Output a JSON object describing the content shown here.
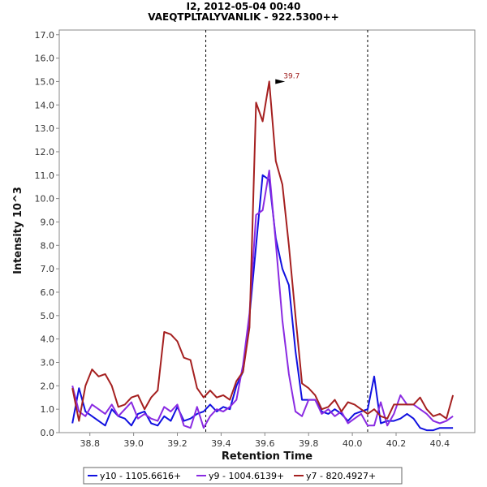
{
  "chart_data": {
    "type": "line",
    "title": "I2, 2012-05-04 00:40",
    "subtitle": "VAEQTPLTALYVANLIK - 922.5300++",
    "xlabel": "Retention Time",
    "ylabel": "Intensity 10^3",
    "xlim": [
      38.66,
      40.56
    ],
    "ylim": [
      0,
      17.2
    ],
    "xticks": [
      38.8,
      39.0,
      39.2,
      39.4,
      39.6,
      39.8,
      40.0,
      40.2,
      40.4
    ],
    "xtick_labels": [
      "38.8",
      "39.0",
      "39.2",
      "39.4",
      "39.6",
      "39.8",
      "40.0",
      "40.2",
      "40.4"
    ],
    "yticks": [
      0,
      1,
      2,
      3,
      4,
      5,
      6,
      7,
      8,
      9,
      10,
      11,
      12,
      13,
      14,
      15,
      16,
      17
    ],
    "ytick_labels": [
      "0.0",
      "1.0",
      "2.0",
      "3.0",
      "4.0",
      "5.0",
      "6.0",
      "7.0",
      "8.0",
      "9.0",
      "10.0",
      "11.0",
      "12.0",
      "13.0",
      "14.0",
      "15.0",
      "16.0",
      "17.0"
    ],
    "boundaries": [
      39.33,
      40.07
    ],
    "annotation": {
      "x": 39.7,
      "y": 15.0,
      "label": "39.7",
      "color": "#a02020"
    },
    "x": [
      38.72,
      38.75,
      38.78,
      38.81,
      38.84,
      38.87,
      38.9,
      38.93,
      38.96,
      38.99,
      39.02,
      39.05,
      39.08,
      39.11,
      39.14,
      39.17,
      39.2,
      39.23,
      39.26,
      39.29,
      39.32,
      39.35,
      39.38,
      39.41,
      39.44,
      39.47,
      39.5,
      39.53,
      39.56,
      39.59,
      39.62,
      39.65,
      39.68,
      39.71,
      39.74,
      39.77,
      39.8,
      39.83,
      39.86,
      39.89,
      39.92,
      39.95,
      39.98,
      40.01,
      40.04,
      40.07,
      40.1,
      40.13,
      40.16,
      40.19,
      40.22,
      40.25,
      40.28,
      40.31,
      40.34,
      40.37,
      40.4,
      40.43,
      40.46
    ],
    "series": [
      {
        "name": "y10 - 1105.6616+",
        "color": "#1010e0",
        "values": [
          0.4,
          1.9,
          0.9,
          0.7,
          0.5,
          0.3,
          1.0,
          0.7,
          0.6,
          0.3,
          0.8,
          0.9,
          0.4,
          0.3,
          0.7,
          0.5,
          1.1,
          0.5,
          0.6,
          0.8,
          0.9,
          1.2,
          0.9,
          1.1,
          1.0,
          2.0,
          2.6,
          5.0,
          8.0,
          11.0,
          10.8,
          8.3,
          7.0,
          6.3,
          3.5,
          1.4,
          1.4,
          1.4,
          0.9,
          0.8,
          1.0,
          0.8,
          0.5,
          0.8,
          0.9,
          1.0,
          2.4,
          0.4,
          0.5,
          0.5,
          0.6,
          0.8,
          0.6,
          0.2,
          0.1,
          0.1,
          0.2,
          0.2,
          0.2
        ]
      },
      {
        "name": "y9 - 1004.6139+",
        "color": "#8a2be2",
        "values": [
          2.0,
          0.9,
          0.7,
          1.2,
          1.0,
          0.8,
          1.2,
          0.7,
          1.0,
          1.3,
          0.6,
          0.8,
          0.6,
          0.5,
          1.1,
          0.9,
          1.2,
          0.3,
          0.2,
          1.1,
          0.2,
          0.7,
          1.0,
          0.9,
          1.1,
          1.4,
          2.9,
          5.1,
          9.3,
          9.5,
          11.2,
          8.1,
          4.8,
          2.5,
          0.9,
          0.7,
          1.4,
          1.4,
          0.8,
          1.0,
          0.7,
          0.9,
          0.4,
          0.6,
          0.8,
          0.3,
          0.3,
          1.3,
          0.3,
          0.8,
          1.6,
          1.2,
          1.2,
          1.0,
          0.8,
          0.5,
          0.4,
          0.5,
          0.7
        ]
      },
      {
        "name": "y7 - 820.4927+",
        "color": "#a52020",
        "values": [
          1.9,
          0.5,
          2.0,
          2.7,
          2.4,
          2.5,
          2.0,
          1.1,
          1.2,
          1.5,
          1.6,
          1.0,
          1.5,
          1.8,
          4.3,
          4.2,
          3.9,
          3.2,
          3.1,
          1.9,
          1.5,
          1.8,
          1.5,
          1.6,
          1.4,
          2.2,
          2.6,
          4.5,
          14.1,
          13.3,
          15.0,
          11.6,
          10.6,
          8.0,
          5.0,
          2.1,
          1.9,
          1.6,
          1.0,
          1.1,
          1.4,
          0.9,
          1.3,
          1.2,
          1.0,
          0.8,
          1.0,
          0.7,
          0.6,
          1.2,
          1.2,
          1.2,
          1.2,
          1.5,
          1.0,
          0.7,
          0.8,
          0.6,
          1.6
        ]
      }
    ]
  },
  "legend": {
    "items": [
      {
        "label": "y10 - 1105.6616+",
        "color": "#1010e0"
      },
      {
        "label": "y9 - 1004.6139+",
        "color": "#8a2be2"
      },
      {
        "label": "y7 - 820.4927+",
        "color": "#a52020"
      }
    ]
  }
}
